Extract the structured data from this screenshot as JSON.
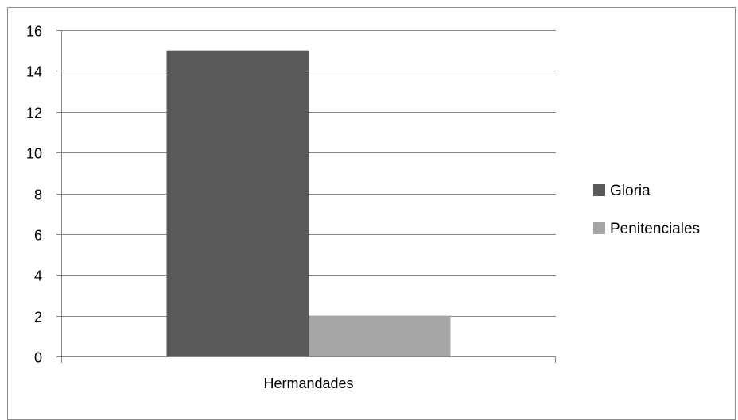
{
  "chart_data": {
    "type": "bar",
    "categories": [
      "Hermandades"
    ],
    "series": [
      {
        "name": "Gloria",
        "values": [
          15
        ],
        "color": "#595959"
      },
      {
        "name": "Penitenciales",
        "values": [
          2
        ],
        "color": "#a6a6a6"
      }
    ],
    "ylim": [
      0,
      16
    ],
    "yticks": [
      0,
      2,
      4,
      6,
      8,
      10,
      12,
      14,
      16
    ],
    "grid": true,
    "legend_position": "right",
    "title": "",
    "xlabel": "",
    "ylabel": ""
  }
}
